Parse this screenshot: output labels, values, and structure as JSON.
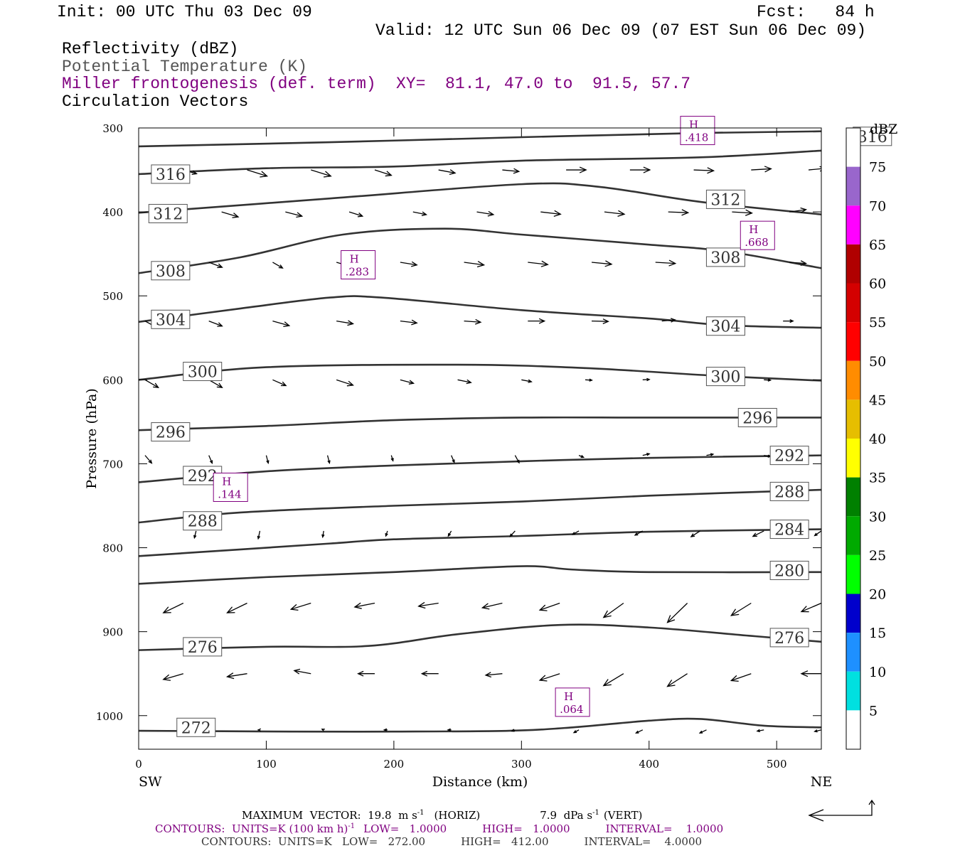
{
  "header": {
    "init": "Init: 00 UTC Thu 03 Dec 09",
    "fcst": "Fcst:   84 h",
    "valid": "Valid: 12 UTC Sun 06 Dec 09 (07 EST Sun 06 Dec 09)",
    "fields": [
      {
        "text": "Reflectivity (dBZ)",
        "color": "#000000"
      },
      {
        "text": "Potential Temperature (K)",
        "color": "#555555"
      },
      {
        "text": "Miller frontogenesis (def. term)",
        "color": "#800080"
      },
      {
        "text": "Circulation Vectors",
        "color": "#000000"
      }
    ],
    "xy": "XY=  81.1, 47.0 to  91.5, 57.7"
  },
  "chart_data": {
    "type": "cross-section",
    "xlabel": "Distance (km)",
    "ylabel": "Pressure (hPa)",
    "xlim": [
      0,
      535
    ],
    "ylim": [
      1040,
      300
    ],
    "xticks": [
      0,
      100,
      200,
      300,
      400,
      500
    ],
    "yticks": [
      300,
      400,
      500,
      600,
      700,
      800,
      900,
      1000
    ],
    "left_end_label": "SW",
    "right_end_label": "NE",
    "isentropes": [
      {
        "theta": "316",
        "points": [
          [
            0,
            322
          ],
          [
            150,
            317
          ],
          [
            300,
            311
          ],
          [
            440,
            306
          ],
          [
            535,
            304
          ]
        ]
      },
      {
        "theta": "316",
        "points": [
          [
            0,
            355
          ],
          [
            100,
            348
          ],
          [
            200,
            346
          ],
          [
            300,
            339
          ],
          [
            440,
            335
          ],
          [
            535,
            327
          ]
        ]
      },
      {
        "theta": "312",
        "points": [
          [
            0,
            401
          ],
          [
            150,
            384
          ],
          [
            300,
            367
          ],
          [
            360,
            370
          ],
          [
            440,
            388
          ],
          [
            535,
            403
          ]
        ]
      },
      {
        "theta": "308",
        "points": [
          [
            0,
            473
          ],
          [
            80,
            454
          ],
          [
            160,
            427
          ],
          [
            240,
            420
          ],
          [
            300,
            427
          ],
          [
            400,
            439
          ],
          [
            460,
            447
          ],
          [
            535,
            467
          ]
        ]
      },
      {
        "theta": "304",
        "points": [
          [
            0,
            531
          ],
          [
            80,
            515
          ],
          [
            150,
            502
          ],
          [
            190,
            502
          ],
          [
            300,
            517
          ],
          [
            400,
            527
          ],
          [
            460,
            535
          ],
          [
            535,
            538
          ]
        ]
      },
      {
        "theta": "300",
        "points": [
          [
            0,
            600
          ],
          [
            100,
            585
          ],
          [
            250,
            582
          ],
          [
            350,
            586
          ],
          [
            450,
            595
          ],
          [
            535,
            601
          ]
        ]
      },
      {
        "theta": "296",
        "points": [
          [
            0,
            660
          ],
          [
            100,
            655
          ],
          [
            200,
            648
          ],
          [
            300,
            645
          ],
          [
            400,
            645
          ],
          [
            535,
            645
          ]
        ]
      },
      {
        "theta": "292",
        "points": [
          [
            0,
            722
          ],
          [
            100,
            709
          ],
          [
            200,
            702
          ],
          [
            300,
            697
          ],
          [
            400,
            693
          ],
          [
            535,
            690
          ]
        ]
      },
      {
        "theta": "288",
        "points": [
          [
            0,
            770
          ],
          [
            80,
            758
          ],
          [
            200,
            750
          ],
          [
            300,
            745
          ],
          [
            400,
            738
          ],
          [
            535,
            731
          ]
        ]
      },
      {
        "theta": "284",
        "points": [
          [
            0,
            810
          ],
          [
            80,
            802
          ],
          [
            150,
            795
          ],
          [
            200,
            790
          ],
          [
            300,
            786
          ],
          [
            400,
            781
          ],
          [
            535,
            778
          ]
        ]
      },
      {
        "theta": "280",
        "points": [
          [
            0,
            843
          ],
          [
            100,
            835
          ],
          [
            200,
            829
          ],
          [
            300,
            822
          ],
          [
            340,
            826
          ],
          [
            400,
            829
          ],
          [
            535,
            829
          ]
        ]
      },
      {
        "theta": "276",
        "points": [
          [
            0,
            922
          ],
          [
            100,
            918
          ],
          [
            180,
            917
          ],
          [
            250,
            903
          ],
          [
            330,
            892
          ],
          [
            400,
            895
          ],
          [
            480,
            905
          ],
          [
            535,
            912
          ]
        ]
      },
      {
        "theta": "272",
        "points": [
          [
            0,
            1018
          ],
          [
            120,
            1019
          ],
          [
            200,
            1019
          ],
          [
            290,
            1018
          ],
          [
            340,
            1014
          ],
          [
            400,
            1006
          ],
          [
            440,
            1004
          ],
          [
            490,
            1012
          ],
          [
            535,
            1014
          ]
        ]
      }
    ],
    "contour_labels": [
      {
        "text": "316",
        "x": 575,
        "p": 310
      },
      {
        "text": "316",
        "x": 25,
        "p": 355
      },
      {
        "text": "312",
        "x": 460,
        "p": 385
      },
      {
        "text": "312",
        "x": 23,
        "p": 402
      },
      {
        "text": "308",
        "x": 460,
        "p": 454
      },
      {
        "text": "308",
        "x": 25,
        "p": 470
      },
      {
        "text": "304",
        "x": 25,
        "p": 528
      },
      {
        "text": "304",
        "x": 460,
        "p": 536
      },
      {
        "text": "300",
        "x": 50,
        "p": 590
      },
      {
        "text": "300",
        "x": 460,
        "p": 596
      },
      {
        "text": "296",
        "x": 485,
        "p": 645
      },
      {
        "text": "296",
        "x": 25,
        "p": 662
      },
      {
        "text": "292",
        "x": 510,
        "p": 690
      },
      {
        "text": "292",
        "x": 50,
        "p": 714
      },
      {
        "text": "288",
        "x": 510,
        "p": 733
      },
      {
        "text": "288",
        "x": 50,
        "p": 768
      },
      {
        "text": "284",
        "x": 510,
        "p": 778
      },
      {
        "text": "280",
        "x": 510,
        "p": 827
      },
      {
        "text": "276",
        "x": 510,
        "p": 907
      },
      {
        "text": "276",
        "x": 50,
        "p": 918
      },
      {
        "text": "272",
        "x": 45,
        "p": 1014
      }
    ],
    "maxima": [
      {
        "label": "H",
        "value": ".418",
        "x": 438,
        "p": 303
      },
      {
        "label": "H",
        "value": ".668",
        "x": 485,
        "p": 428
      },
      {
        "label": "H",
        "value": ".283",
        "x": 172,
        "p": 463
      },
      {
        "label": "H",
        "value": ".144",
        "x": 72,
        "p": 728
      },
      {
        "label": "H",
        "value": ".064",
        "x": 340,
        "p": 984
      }
    ],
    "vector_scale": {
      "horizontal_km_per_mps": 2.6,
      "vertical_hpa_per_dpa": 4.6
    },
    "vectors": [
      {
        "p": 350,
        "items": [
          [
            35,
            4,
            1.0
          ],
          [
            85,
            6,
            1.6
          ],
          [
            135,
            6,
            1.6
          ],
          [
            185,
            5,
            1.4
          ],
          [
            235,
            5,
            0.8
          ],
          [
            285,
            5,
            0.4
          ],
          [
            335,
            6,
            0.0
          ],
          [
            385,
            6,
            0.0
          ],
          [
            435,
            6,
            0.2
          ],
          [
            480,
            6,
            -0.3
          ],
          [
            525,
            5,
            -0.4
          ]
        ]
      },
      {
        "p": 400,
        "items": [
          [
            15,
            4,
            1.9
          ],
          [
            65,
            5,
            1.3
          ],
          [
            115,
            5,
            1.1
          ],
          [
            165,
            4,
            1.1
          ],
          [
            215,
            4,
            0.7
          ],
          [
            265,
            5,
            0.7
          ],
          [
            315,
            6,
            0.6
          ],
          [
            365,
            6,
            0.6
          ],
          [
            415,
            6,
            0.2
          ],
          [
            465,
            6,
            0.3
          ],
          [
            510,
            5,
            -0.6
          ]
        ]
      },
      {
        "p": 460,
        "items": [
          [
            15,
            4,
            1.6
          ],
          [
            55,
            4,
            1.3
          ],
          [
            105,
            3,
            1.5
          ],
          [
            155,
            4,
            1.0
          ],
          [
            205,
            5,
            0.7
          ],
          [
            255,
            6,
            0.7
          ],
          [
            305,
            6,
            0.6
          ],
          [
            355,
            6,
            0.5
          ],
          [
            405,
            6,
            0.3
          ],
          [
            455,
            5,
            0.5
          ],
          [
            510,
            5,
            0.3
          ]
        ]
      },
      {
        "p": 530,
        "items": [
          [
            5,
            3,
            1.4
          ],
          [
            55,
            4,
            1.3
          ],
          [
            105,
            5,
            1.2
          ],
          [
            155,
            5,
            0.7
          ],
          [
            205,
            5,
            0.5
          ],
          [
            255,
            5,
            0.3
          ],
          [
            305,
            5,
            0.0
          ],
          [
            355,
            5,
            0.1
          ],
          [
            410,
            4,
            -0.3
          ],
          [
            455,
            4,
            -0.3
          ],
          [
            505,
            3,
            0.0
          ]
        ]
      },
      {
        "p": 600,
        "items": [
          [
            5,
            4,
            2.0
          ],
          [
            55,
            4,
            2.0
          ],
          [
            105,
            4,
            1.5
          ],
          [
            155,
            5,
            1.4
          ],
          [
            205,
            4,
            0.9
          ],
          [
            250,
            4,
            0.7
          ],
          [
            300,
            3,
            0.5
          ],
          [
            350,
            2,
            0.1
          ],
          [
            395,
            2,
            -0.1
          ],
          [
            490,
            2,
            0.1
          ]
        ]
      },
      {
        "p": 690,
        "items": [
          [
            5,
            2,
            2.0
          ],
          [
            55,
            1,
            2.0
          ],
          [
            100,
            0.6,
            2.0
          ],
          [
            148,
            0.6,
            2.0
          ],
          [
            198,
            0.5,
            1.4
          ],
          [
            245,
            0.9,
            1.8
          ],
          [
            295,
            1.2,
            1.9
          ],
          [
            345,
            1.4,
            0.5
          ],
          [
            395,
            2,
            -0.4
          ],
          [
            445,
            2,
            -0.3
          ],
          [
            490,
            2,
            0.3
          ]
        ]
      },
      {
        "p": 780,
        "items": [
          [
            45,
            -0.5,
            1.8
          ],
          [
            95,
            -0.5,
            2.0
          ],
          [
            145,
            -0.3,
            1.6
          ],
          [
            195,
            -0.5,
            1.3
          ],
          [
            245,
            -0.9,
            1.3
          ],
          [
            295,
            -1.5,
            1.4
          ],
          [
            345,
            -1.9,
            0.9
          ],
          [
            395,
            -2.3,
            1.1
          ],
          [
            440,
            -2.7,
            1.5
          ],
          [
            490,
            -3.3,
            1.4
          ],
          [
            535,
            -2,
            1.2
          ]
        ]
      },
      {
        "p": 866,
        "items": [
          [
            35,
            -6,
            2.5
          ],
          [
            85,
            -6,
            2.5
          ],
          [
            135,
            -6,
            1.6
          ],
          [
            185,
            -6,
            1.0
          ],
          [
            235,
            -6,
            0.8
          ],
          [
            285,
            -6,
            1.2
          ],
          [
            330,
            -6,
            1.8
          ],
          [
            380,
            -6,
            3.7
          ],
          [
            430,
            -6,
            5.0
          ],
          [
            480,
            -6,
            3.2
          ],
          [
            535,
            -6,
            2.2
          ]
        ]
      },
      {
        "p": 950,
        "items": [
          [
            35,
            -6,
            1.5
          ],
          [
            85,
            -6,
            0.8
          ],
          [
            135,
            -5,
            -0.8
          ],
          [
            185,
            -5,
            0.0
          ],
          [
            235,
            -5,
            0.0
          ],
          [
            285,
            -5,
            0.4
          ],
          [
            330,
            -6,
            1.7
          ],
          [
            380,
            -6,
            3.1
          ],
          [
            430,
            -6,
            3.3
          ],
          [
            480,
            -6,
            1.8
          ],
          [
            535,
            -6,
            0.0
          ]
        ]
      },
      {
        "p": 1017,
        "items": [
          [
            95,
            -0.5,
            0.0
          ],
          [
            145,
            -0.5,
            -0.2
          ],
          [
            195,
            -1,
            0.0
          ],
          [
            245,
            -1,
            0.0
          ],
          [
            295,
            -1,
            0.3
          ],
          [
            345,
            -1.5,
            0.7
          ],
          [
            395,
            -2,
            0.8
          ],
          [
            445,
            -2,
            0.8
          ],
          [
            490,
            -2,
            0.3
          ],
          [
            535,
            -2,
            0.4
          ]
        ]
      }
    ],
    "colorbar": {
      "title": "dBZ",
      "labels": [
        "75",
        "70",
        "65",
        "60",
        "55",
        "50",
        "45",
        "40",
        "35",
        "30",
        "25",
        "20",
        "15",
        "10",
        "5"
      ],
      "colors": [
        "#ffffff",
        "#9966cc",
        "#ff00ff",
        "#b00000",
        "#d40000",
        "#ff0000",
        "#ff8c00",
        "#e6be00",
        "#ffff00",
        "#008000",
        "#00aa00",
        "#00ff00",
        "#0000cc",
        "#1e90ff",
        "#00e0e0",
        "#ffffff"
      ]
    }
  },
  "footer": {
    "max_vector_left": "MAXIMUM  VECTOR:  19.8  m s",
    "horiz_sup": "-1",
    "max_vector_mid": "(HORIZ)",
    "vert_value": "7.9  dPa s",
    "vert_sup": "-1",
    "vert_tail": "(VERT)",
    "contours1_a": "CONTOURS:  UNITS=K (100 km h)",
    "contours1_sup": "-1",
    "contours1_b": "LOW=   1.0000",
    "contours1_c": "HIGH=   1.0000",
    "contours1_d": "INTERVAL=    1.0000",
    "contours2_a": "CONTOURS:  UNITS=K   LOW=   272.00",
    "contours2_b": "HIGH=   412.00",
    "contours2_c": "INTERVAL=    4.0000"
  }
}
